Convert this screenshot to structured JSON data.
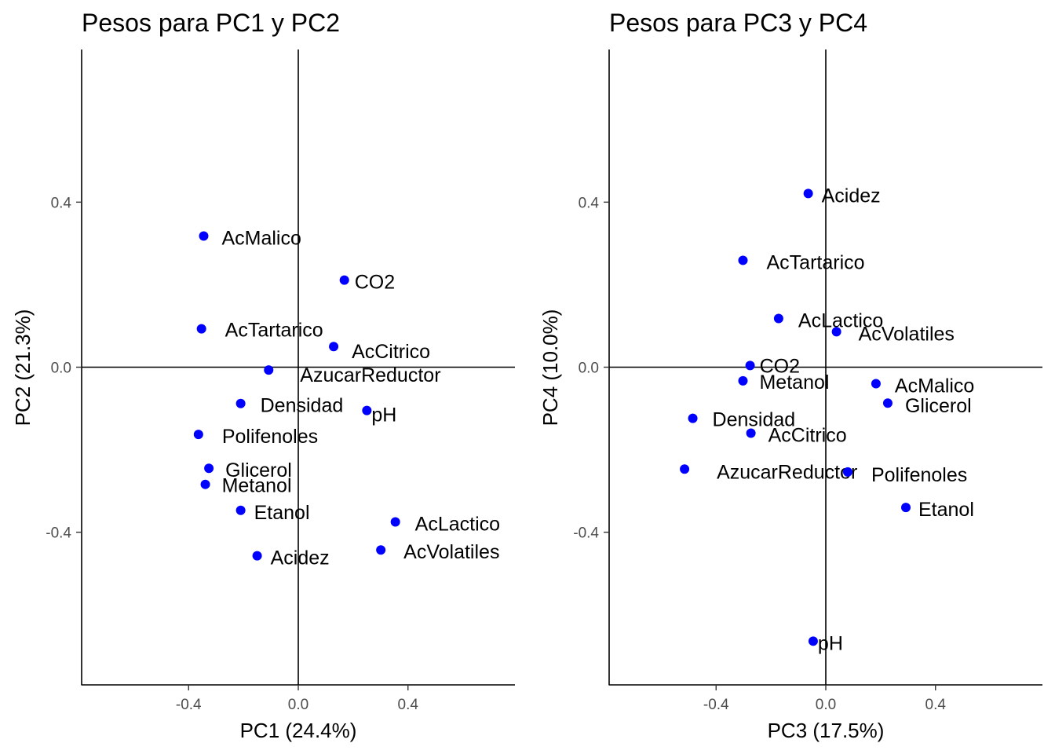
{
  "colors": {
    "point": "#0000ff",
    "axis": "#000000",
    "tick_text": "#4d4d4d"
  },
  "chart_data": [
    {
      "type": "scatter",
      "title": "Pesos para PC1 y PC2",
      "xlabel": "PC1 (24.4%)",
      "ylabel": "PC2 (21.3%)",
      "xlim": [
        -0.79,
        0.79
      ],
      "ylim": [
        -0.77,
        0.77
      ],
      "xticks": [
        "-0.4",
        "0.0",
        "0.4"
      ],
      "yticks": [
        "-0.4",
        "0.0",
        "0.4"
      ],
      "reference_lines": {
        "x": 0,
        "y": 0
      },
      "grid": false,
      "points": [
        {
          "name": "AcMalico",
          "x": -0.345,
          "y": 0.318
        },
        {
          "name": "CO2",
          "x": 0.168,
          "y": 0.211
        },
        {
          "name": "AcTartarico",
          "x": -0.353,
          "y": 0.093
        },
        {
          "name": "AcCitrico",
          "x": 0.129,
          "y": 0.05
        },
        {
          "name": "AzucarReductor",
          "x": -0.108,
          "y": -0.007
        },
        {
          "name": "Densidad",
          "x": -0.21,
          "y": -0.088
        },
        {
          "name": "pH",
          "x": 0.25,
          "y": -0.105
        },
        {
          "name": "Polifenoles",
          "x": -0.364,
          "y": -0.163
        },
        {
          "name": "Glicerol",
          "x": -0.326,
          "y": -0.245
        },
        {
          "name": "Metanol",
          "x": -0.339,
          "y": -0.284
        },
        {
          "name": "Etanol",
          "x": -0.21,
          "y": -0.347
        },
        {
          "name": "AcLactico",
          "x": 0.354,
          "y": -0.375
        },
        {
          "name": "AcVolatiles",
          "x": 0.301,
          "y": -0.443
        },
        {
          "name": "Acidez",
          "x": -0.15,
          "y": -0.457
        }
      ]
    },
    {
      "type": "scatter",
      "title": "Pesos para PC3 y PC4",
      "xlabel": "PC3 (17.5%)",
      "ylabel": "PC4 (10.0%)",
      "xlim": [
        -0.79,
        0.79
      ],
      "ylim": [
        -0.77,
        0.77
      ],
      "xticks": [
        "-0.4",
        "0.0",
        "0.4"
      ],
      "yticks": [
        "-0.4",
        "0.0",
        "0.4"
      ],
      "reference_lines": {
        "x": 0,
        "y": 0
      },
      "grid": false,
      "points": [
        {
          "name": "Acidez",
          "x": -0.064,
          "y": 0.421
        },
        {
          "name": "AcTartarico",
          "x": -0.302,
          "y": 0.259
        },
        {
          "name": "AcLactico",
          "x": -0.172,
          "y": 0.118
        },
        {
          "name": "AcVolatiles",
          "x": 0.039,
          "y": 0.086
        },
        {
          "name": "CO2",
          "x": -0.276,
          "y": 0.004
        },
        {
          "name": "Metanol",
          "x": -0.302,
          "y": -0.033
        },
        {
          "name": "AcMalico",
          "x": 0.183,
          "y": -0.04
        },
        {
          "name": "Glicerol",
          "x": 0.226,
          "y": -0.087
        },
        {
          "name": "Densidad",
          "x": -0.485,
          "y": -0.124
        },
        {
          "name": "AcCitrico",
          "x": -0.273,
          "y": -0.16
        },
        {
          "name": "AzucarReductor",
          "x": -0.515,
          "y": -0.247
        },
        {
          "name": "Polifenoles",
          "x": 0.08,
          "y": -0.254
        },
        {
          "name": "Etanol",
          "x": 0.292,
          "y": -0.34
        },
        {
          "name": "pH",
          "x": -0.046,
          "y": -0.664
        }
      ]
    }
  ]
}
